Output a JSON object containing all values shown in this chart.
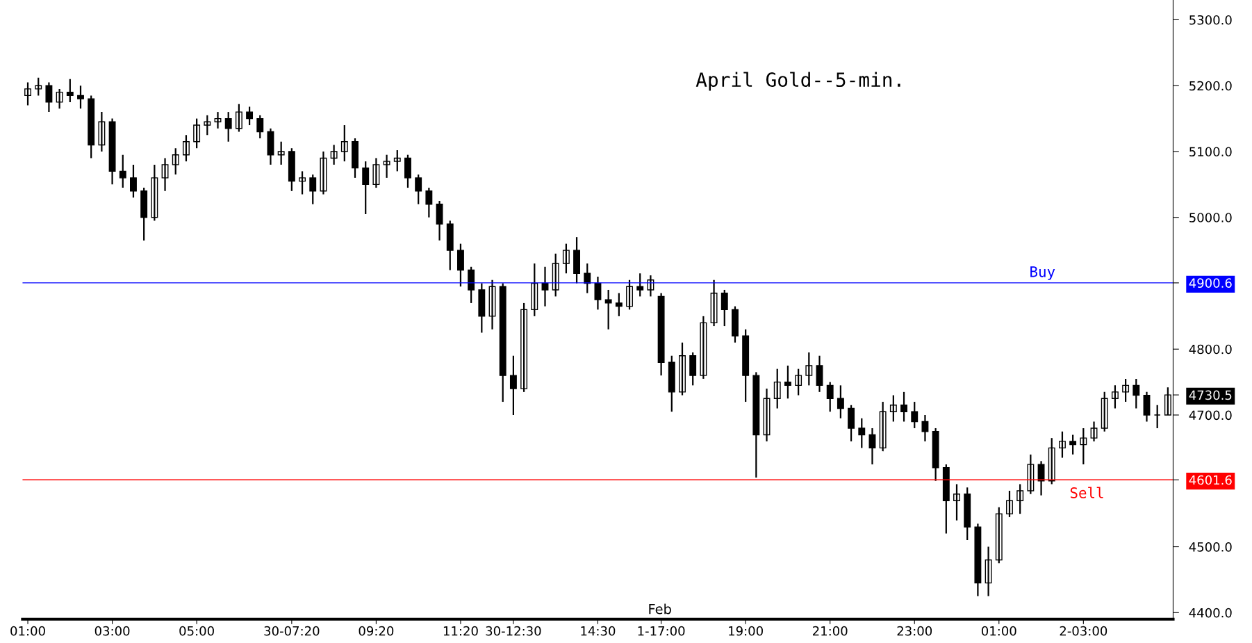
{
  "chart_data": {
    "type": "candlestick",
    "title": "April Gold--5-min.",
    "categories": [
      "01:00",
      null,
      null,
      null,
      null,
      null,
      null,
      null,
      "03:00",
      null,
      null,
      null,
      null,
      null,
      null,
      null,
      "05:00",
      null,
      null,
      null,
      null,
      null,
      null,
      null,
      null,
      "30-07:20",
      null,
      null,
      null,
      null,
      null,
      null,
      null,
      "09:20",
      null,
      null,
      null,
      null,
      null,
      null,
      null,
      "11:20",
      null,
      null,
      null,
      null,
      "30-12:30",
      null,
      null,
      null,
      null,
      null,
      null,
      null,
      "14:30",
      null,
      null,
      null,
      null,
      null,
      "1-17:00",
      null,
      null,
      null,
      null,
      null,
      null,
      null,
      "19:00",
      null,
      null,
      null,
      null,
      null,
      null,
      null,
      "21:00",
      null,
      null,
      null,
      null,
      null,
      null,
      null,
      "23:00",
      null,
      null,
      null,
      null,
      null,
      null,
      null,
      "01:00",
      null,
      null,
      null,
      null,
      null,
      null,
      null,
      "2-03:00",
      null,
      null,
      null,
      null,
      null,
      null,
      null,
      null
    ],
    "ohlc": [
      [
        5185,
        5205,
        5170,
        5195
      ],
      [
        5195,
        5212,
        5185,
        5200
      ],
      [
        5200,
        5205,
        5160,
        5175
      ],
      [
        5175,
        5195,
        5165,
        5190
      ],
      [
        5190,
        5210,
        5175,
        5185
      ],
      [
        5185,
        5200,
        5165,
        5180
      ],
      [
        5180,
        5185,
        5090,
        5110
      ],
      [
        5110,
        5160,
        5100,
        5145
      ],
      [
        5145,
        5150,
        5050,
        5070
      ],
      [
        5070,
        5095,
        5045,
        5060
      ],
      [
        5060,
        5080,
        5030,
        5040
      ],
      [
        5040,
        5045,
        4965,
        5000
      ],
      [
        5000,
        5080,
        4995,
        5060
      ],
      [
        5060,
        5090,
        5040,
        5080
      ],
      [
        5080,
        5105,
        5065,
        5095
      ],
      [
        5095,
        5125,
        5085,
        5115
      ],
      [
        5115,
        5150,
        5105,
        5140
      ],
      [
        5140,
        5155,
        5125,
        5145
      ],
      [
        5145,
        5160,
        5135,
        5150
      ],
      [
        5150,
        5160,
        5115,
        5135
      ],
      [
        5135,
        5172,
        5130,
        5160
      ],
      [
        5160,
        5168,
        5140,
        5150
      ],
      [
        5150,
        5155,
        5120,
        5130
      ],
      [
        5130,
        5135,
        5080,
        5095
      ],
      [
        5095,
        5115,
        5080,
        5100
      ],
      [
        5100,
        5105,
        5040,
        5055
      ],
      [
        5055,
        5070,
        5035,
        5060
      ],
      [
        5060,
        5065,
        5020,
        5040
      ],
      [
        5040,
        5100,
        5035,
        5090
      ],
      [
        5090,
        5110,
        5080,
        5100
      ],
      [
        5100,
        5140,
        5085,
        5115
      ],
      [
        5115,
        5120,
        5060,
        5075
      ],
      [
        5075,
        5085,
        5005,
        5050
      ],
      [
        5050,
        5090,
        5045,
        5080
      ],
      [
        5080,
        5095,
        5060,
        5085
      ],
      [
        5085,
        5102,
        5070,
        5090
      ],
      [
        5090,
        5095,
        5045,
        5060
      ],
      [
        5060,
        5065,
        5020,
        5040
      ],
      [
        5040,
        5045,
        5000,
        5020
      ],
      [
        5020,
        5025,
        4965,
        4990
      ],
      [
        4990,
        4995,
        4920,
        4950
      ],
      [
        4950,
        4960,
        4895,
        4920
      ],
      [
        4920,
        4925,
        4870,
        4890
      ],
      [
        4890,
        4900,
        4825,
        4850
      ],
      [
        4850,
        4905,
        4830,
        4895
      ],
      [
        4895,
        4900,
        4720,
        4760
      ],
      [
        4760,
        4790,
        4700,
        4740
      ],
      [
        4740,
        4870,
        4735,
        4860
      ],
      [
        4860,
        4930,
        4850,
        4900
      ],
      [
        4900,
        4925,
        4865,
        4890
      ],
      [
        4890,
        4945,
        4880,
        4930
      ],
      [
        4930,
        4960,
        4915,
        4950
      ],
      [
        4950,
        4970,
        4900,
        4915
      ],
      [
        4915,
        4930,
        4885,
        4900
      ],
      [
        4900,
        4910,
        4860,
        4875
      ],
      [
        4875,
        4890,
        4830,
        4870
      ],
      [
        4870,
        4885,
        4850,
        4865
      ],
      [
        4865,
        4905,
        4860,
        4895
      ],
      [
        4895,
        4915,
        4880,
        4890
      ],
      [
        4890,
        4912,
        4880,
        4905
      ],
      [
        4880,
        4885,
        4760,
        4780
      ],
      [
        4780,
        4790,
        4705,
        4735
      ],
      [
        4735,
        4810,
        4730,
        4790
      ],
      [
        4790,
        4795,
        4745,
        4760
      ],
      [
        4760,
        4850,
        4755,
        4840
      ],
      [
        4840,
        4905,
        4835,
        4885
      ],
      [
        4885,
        4890,
        4835,
        4860
      ],
      [
        4860,
        4865,
        4810,
        4820
      ],
      [
        4820,
        4830,
        4720,
        4760
      ],
      [
        4760,
        4765,
        4605,
        4670
      ],
      [
        4670,
        4740,
        4660,
        4725
      ],
      [
        4725,
        4770,
        4710,
        4750
      ],
      [
        4750,
        4775,
        4725,
        4745
      ],
      [
        4745,
        4770,
        4730,
        4760
      ],
      [
        4760,
        4795,
        4745,
        4775
      ],
      [
        4775,
        4790,
        4735,
        4745
      ],
      [
        4745,
        4750,
        4705,
        4725
      ],
      [
        4725,
        4745,
        4695,
        4710
      ],
      [
        4710,
        4715,
        4660,
        4680
      ],
      [
        4680,
        4695,
        4650,
        4670
      ],
      [
        4670,
        4680,
        4625,
        4650
      ],
      [
        4650,
        4720,
        4645,
        4705
      ],
      [
        4705,
        4730,
        4690,
        4715
      ],
      [
        4715,
        4735,
        4690,
        4705
      ],
      [
        4705,
        4720,
        4680,
        4690
      ],
      [
        4690,
        4700,
        4660,
        4675
      ],
      [
        4675,
        4680,
        4600,
        4620
      ],
      [
        4620,
        4625,
        4520,
        4570
      ],
      [
        4570,
        4595,
        4540,
        4580
      ],
      [
        4580,
        4590,
        4510,
        4530
      ],
      [
        4530,
        4535,
        4425,
        4445
      ],
      [
        4445,
        4500,
        4425,
        4480
      ],
      [
        4480,
        4560,
        4475,
        4550
      ],
      [
        4550,
        4585,
        4545,
        4570
      ],
      [
        4570,
        4595,
        4550,
        4585
      ],
      [
        4585,
        4640,
        4580,
        4625
      ],
      [
        4625,
        4630,
        4578,
        4600
      ],
      [
        4600,
        4665,
        4595,
        4650
      ],
      [
        4650,
        4675,
        4635,
        4660
      ],
      [
        4660,
        4670,
        4640,
        4655
      ],
      [
        4655,
        4680,
        4625,
        4665
      ],
      [
        4665,
        4690,
        4660,
        4680
      ],
      [
        4680,
        4735,
        4675,
        4725
      ],
      [
        4725,
        4745,
        4710,
        4735
      ],
      [
        4735,
        4755,
        4720,
        4745
      ],
      [
        4745,
        4755,
        4710,
        4730
      ],
      [
        4730,
        4735,
        4690,
        4700
      ],
      [
        4700,
        4715,
        4680,
        4700
      ],
      [
        4700,
        4742,
        4700,
        4730.5
      ]
    ],
    "ylim": [
      4390,
      5330
    ],
    "yticks": [
      {
        "value": 4400,
        "label": "4400.0"
      },
      {
        "value": 4500,
        "label": "4500.0"
      },
      {
        "value": 4700,
        "label": "4700.0"
      },
      {
        "value": 4800,
        "label": "4800.0"
      },
      {
        "value": 5000,
        "label": "5000.0"
      },
      {
        "value": 5100,
        "label": "5100.0"
      },
      {
        "value": 5200,
        "label": "5200.0"
      },
      {
        "value": 5300,
        "label": "5300.0"
      },
      {
        "value": 4900.6,
        "label": "4900.6"
      },
      {
        "value": 4601.6,
        "label": "4601.6"
      },
      {
        "value": 4730.5,
        "label": "4730.5"
      }
    ],
    "ref_lines": [
      {
        "axis": "y",
        "value": 4900.6,
        "label": "Buy",
        "color": "#0000ff",
        "line_style": "solid"
      },
      {
        "axis": "y",
        "value": 4601.6,
        "label": "Sell",
        "color": "#ff0000",
        "line_style": "solid"
      }
    ],
    "annotations": [
      "Feb"
    ],
    "grid": false,
    "legend": false
  }
}
